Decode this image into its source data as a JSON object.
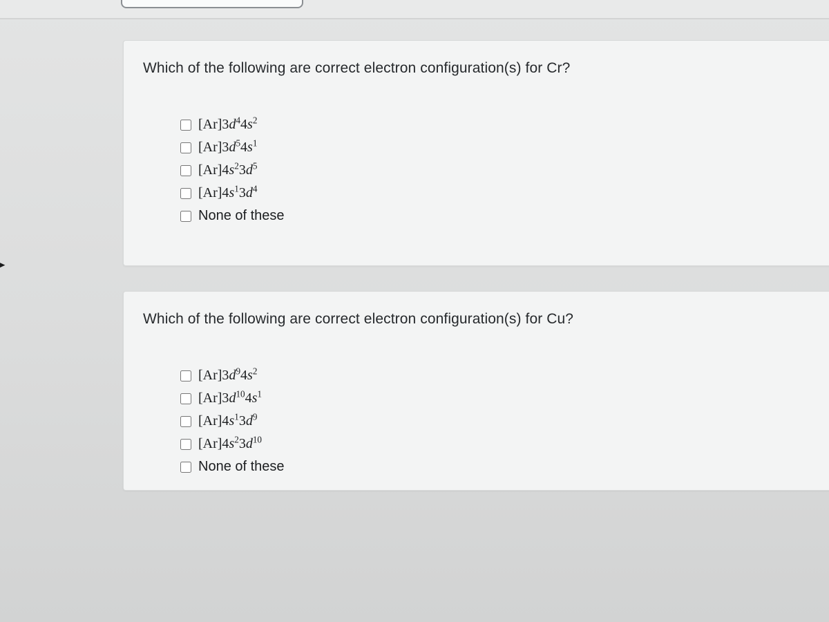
{
  "background_color": "#d9dadb",
  "card_background": "#f3f4f4",
  "card_border": "#d7d9d9",
  "text_color": "#26292c",
  "question_fontsize": 21,
  "option_fontsize": 20,
  "questions": [
    {
      "id": "q-cr",
      "prompt": "Which of the following are correct electron configuration(s) for Cr?",
      "options": [
        {
          "type": "config",
          "prefix": "[Ar]",
          "parts": [
            [
              "3",
              "d",
              "4"
            ],
            [
              "4",
              "s",
              "2"
            ]
          ]
        },
        {
          "type": "config",
          "prefix": "[Ar]",
          "parts": [
            [
              "3",
              "d",
              "5"
            ],
            [
              "4",
              "s",
              "1"
            ]
          ]
        },
        {
          "type": "config",
          "prefix": "[Ar]",
          "parts": [
            [
              "4",
              "s",
              "2"
            ],
            [
              "3",
              "d",
              "5"
            ]
          ]
        },
        {
          "type": "config",
          "prefix": "[Ar]",
          "parts": [
            [
              "4",
              "s",
              "1"
            ],
            [
              "3",
              "d",
              "4"
            ]
          ]
        },
        {
          "type": "plain",
          "text": "None of these"
        }
      ]
    },
    {
      "id": "q-cu",
      "prompt": "Which of the following are correct electron configuration(s) for Cu?",
      "options": [
        {
          "type": "config",
          "prefix": "[Ar]",
          "parts": [
            [
              "3",
              "d",
              "9"
            ],
            [
              "4",
              "s",
              "2"
            ]
          ]
        },
        {
          "type": "config",
          "prefix": "[Ar]",
          "parts": [
            [
              "3",
              "d",
              "10"
            ],
            [
              "4",
              "s",
              "1"
            ]
          ]
        },
        {
          "type": "config",
          "prefix": "[Ar]",
          "parts": [
            [
              "4",
              "s",
              "1"
            ],
            [
              "3",
              "d",
              "9"
            ]
          ]
        },
        {
          "type": "config",
          "prefix": "[Ar]",
          "parts": [
            [
              "4",
              "s",
              "2"
            ],
            [
              "3",
              "d",
              "10"
            ]
          ]
        },
        {
          "type": "plain",
          "text": "None of these"
        }
      ]
    }
  ]
}
